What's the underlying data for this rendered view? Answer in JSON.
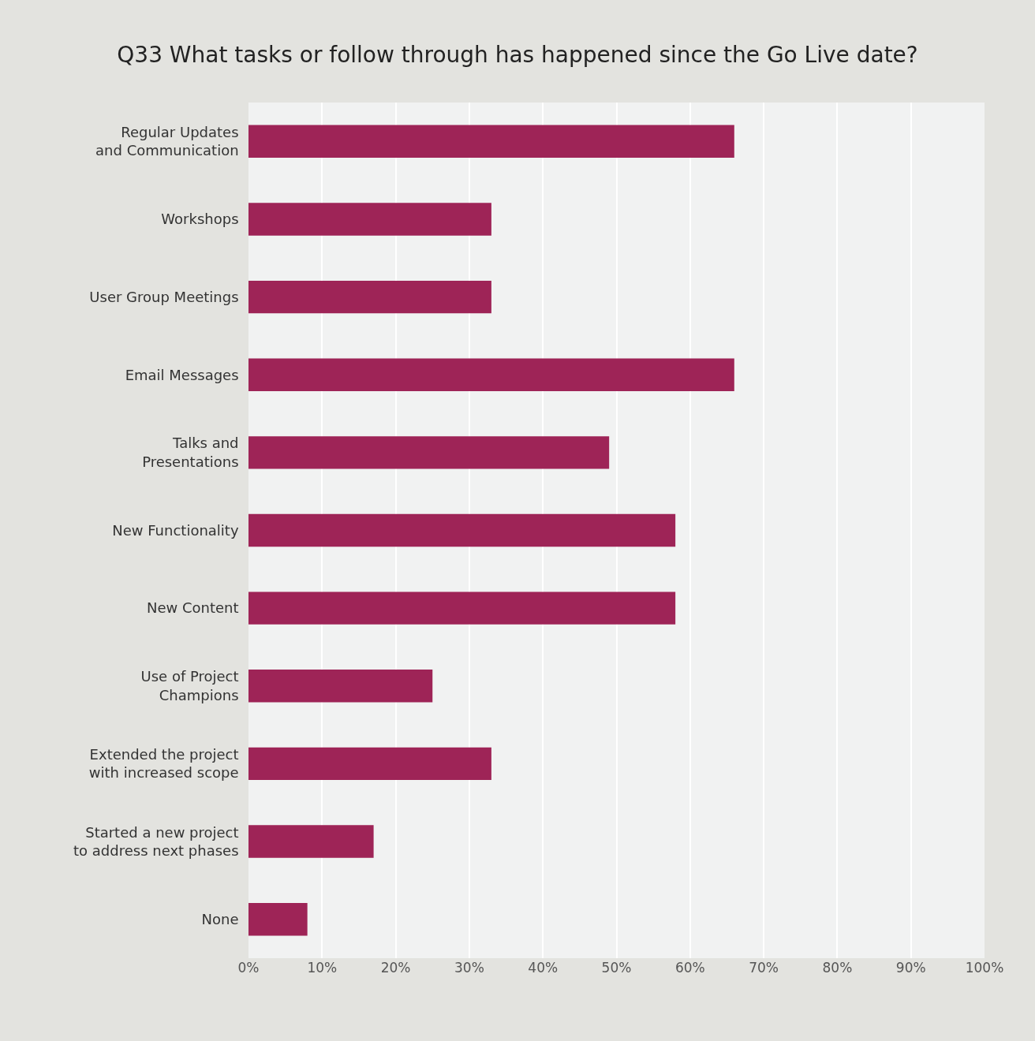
{
  "chart_data": {
    "type": "bar",
    "orientation": "horizontal",
    "title": "Q33 What tasks or follow through has happened since the Go Live date?",
    "categories": [
      "Regular Updates\nand Communication",
      "Workshops",
      "User Group Meetings",
      "Email Messages",
      "Talks and\nPresentations",
      "New Functionality",
      "New Content",
      "Use of Project\nChampions",
      "Extended the project\nwith increased scope",
      "Started a new project\nto address next phases",
      "None"
    ],
    "values": [
      66,
      33,
      33,
      66,
      49,
      58,
      58,
      25,
      33,
      17,
      8
    ],
    "color": "#9e2457",
    "xlim": [
      0,
      100
    ],
    "xticks": [
      {
        "value": 0,
        "label": "0%"
      },
      {
        "value": 10,
        "label": "10%"
      },
      {
        "value": 20,
        "label": "20%"
      },
      {
        "value": 30,
        "label": "30%"
      },
      {
        "value": 40,
        "label": "40%"
      },
      {
        "value": 50,
        "label": "50%"
      },
      {
        "value": 60,
        "label": "60%"
      },
      {
        "value": 70,
        "label": "70%"
      },
      {
        "value": 80,
        "label": "80%"
      },
      {
        "value": 90,
        "label": "90%"
      },
      {
        "value": 100,
        "label": "100%"
      }
    ],
    "grid": "x"
  }
}
